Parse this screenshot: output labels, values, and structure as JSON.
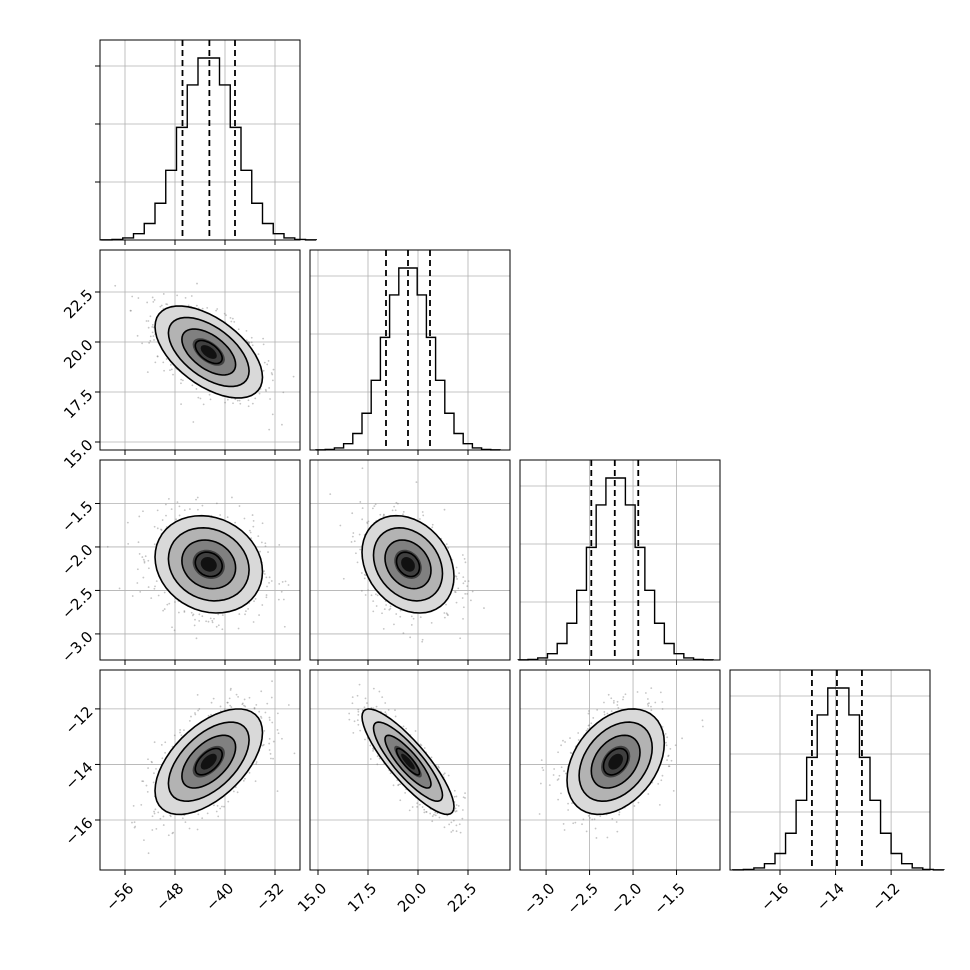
{
  "chart_data": {
    "type": "corner",
    "parameters": [
      {
        "ticks": [
          -56,
          -48,
          -40,
          -32
        ],
        "range": [
          -60,
          -28
        ],
        "dist": {
          "mean": -42.6,
          "sd": 4.3
        },
        "quantiles": [
          -46.8,
          -42.5,
          -38.4
        ]
      },
      {
        "ticks": [
          15.0,
          17.5,
          20.0,
          22.5
        ],
        "range": [
          14.6,
          24.6
        ],
        "dist": {
          "mean": 19.5,
          "sd": 1.15
        },
        "quantiles": [
          18.4,
          19.5,
          20.6
        ]
      },
      {
        "ticks": [
          -3.0,
          -2.5,
          -2.0,
          -1.5
        ],
        "range": [
          -3.3,
          -1.0
        ],
        "dist": {
          "mean": -2.2,
          "sd": 0.28
        },
        "quantiles": [
          -2.48,
          -2.21,
          -1.94
        ]
      },
      {
        "ticks": [
          -16,
          -14,
          -12
        ],
        "range": [
          -17.8,
          -10.6
        ],
        "dist": {
          "mean": -13.9,
          "sd": 0.95
        },
        "quantiles": [
          -14.85,
          -13.95,
          -13.05
        ]
      }
    ],
    "correlations": [
      {
        "i": 1,
        "j": 0,
        "rho": -0.55
      },
      {
        "i": 2,
        "j": 0,
        "rho": -0.15
      },
      {
        "i": 2,
        "j": 1,
        "rho": -0.25
      },
      {
        "i": 3,
        "j": 0,
        "rho": 0.55
      },
      {
        "i": 3,
        "j": 1,
        "rho": -0.85
      },
      {
        "i": 3,
        "j": 2,
        "rho": 0.35
      }
    ],
    "tick_labels": {
      "x": [
        [
          "−56",
          "−48",
          "−40",
          "−32"
        ],
        [
          "15.0",
          "17.5",
          "20.0",
          "22.5"
        ],
        [
          "−3.0",
          "−2.5",
          "−2.0",
          "−1.5"
        ],
        [
          "−16",
          "−14",
          "−12"
        ]
      ],
      "y": [
        [],
        [
          "15.0",
          "17.5",
          "20.0",
          "22.5"
        ],
        [
          "−3.0",
          "−2.5",
          "−2.0",
          "−1.5"
        ],
        [
          "−16",
          "−14",
          "−12"
        ]
      ]
    },
    "histogram_bins": 20,
    "contour_levels_sigma": [
      0.5,
      1.0,
      1.5,
      2.0
    ],
    "grid": true
  }
}
